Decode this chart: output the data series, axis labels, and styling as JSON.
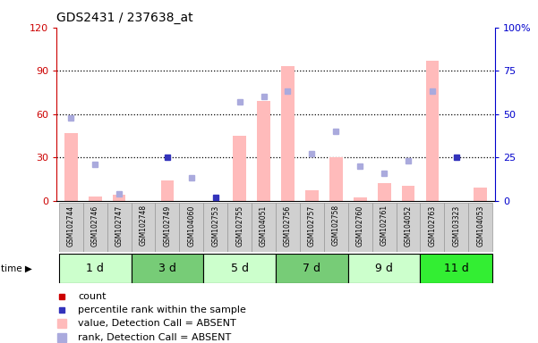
{
  "title": "GDS2431 / 237638_at",
  "samples": [
    "GSM102744",
    "GSM102746",
    "GSM102747",
    "GSM102748",
    "GSM102749",
    "GSM104060",
    "GSM102753",
    "GSM102755",
    "GSM104051",
    "GSM102756",
    "GSM102757",
    "GSM102758",
    "GSM102760",
    "GSM102761",
    "GSM104052",
    "GSM102763",
    "GSM103323",
    "GSM104053"
  ],
  "bar_values_absent": [
    47,
    3,
    4,
    0,
    14,
    0,
    0,
    45,
    69,
    93,
    7,
    30,
    2,
    12,
    10,
    97,
    0,
    9
  ],
  "rank_absent": [
    48,
    21,
    4,
    0,
    0,
    13,
    0,
    57,
    60,
    63,
    27,
    40,
    20,
    16,
    23,
    63,
    0,
    0
  ],
  "rank_present": [
    0,
    0,
    0,
    0,
    25,
    0,
    2,
    0,
    0,
    0,
    0,
    0,
    0,
    0,
    0,
    0,
    25,
    0
  ],
  "time_groups": [
    {
      "label": "1 d",
      "start": 0,
      "end": 3,
      "color": "#ccffcc"
    },
    {
      "label": "3 d",
      "start": 3,
      "end": 6,
      "color": "#77cc77"
    },
    {
      "label": "5 d",
      "start": 6,
      "end": 9,
      "color": "#ccffcc"
    },
    {
      "label": "7 d",
      "start": 9,
      "end": 12,
      "color": "#77cc77"
    },
    {
      "label": "9 d",
      "start": 12,
      "end": 15,
      "color": "#ccffcc"
    },
    {
      "label": "11 d",
      "start": 15,
      "end": 18,
      "color": "#33ee33"
    }
  ],
  "ylim_left": [
    0,
    120
  ],
  "ylim_right": [
    0,
    100
  ],
  "yticks_left": [
    0,
    30,
    60,
    90,
    120
  ],
  "ytick_labels_left": [
    "0",
    "30",
    "60",
    "90",
    "120"
  ],
  "yticks_right": [
    0,
    25,
    50,
    75,
    100
  ],
  "ytick_labels_right": [
    "0",
    "25",
    "50",
    "75",
    "100%"
  ],
  "bar_color_absent": "#ffbbbb",
  "rank_color_absent": "#aaaadd",
  "rank_color_present": "#3333bb",
  "left_axis_color": "#cc0000",
  "right_axis_color": "#0000cc",
  "grid_color": "black",
  "legend": [
    {
      "color": "#cc0000",
      "label": "count"
    },
    {
      "color": "#3333bb",
      "label": "percentile rank within the sample"
    },
    {
      "color": "#ffbbbb",
      "label": "value, Detection Call = ABSENT"
    },
    {
      "color": "#aaaadd",
      "label": "rank, Detection Call = ABSENT"
    }
  ]
}
